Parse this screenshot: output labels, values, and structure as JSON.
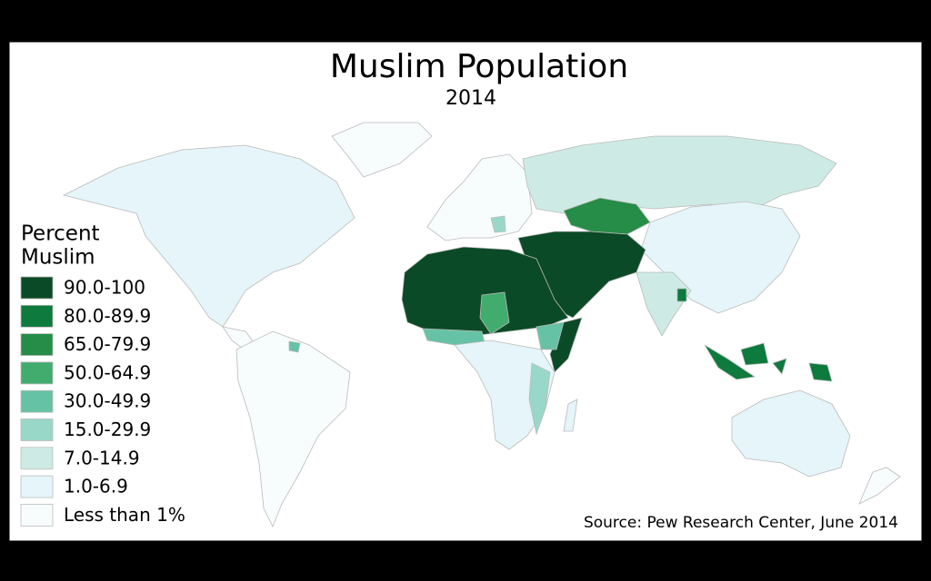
{
  "header": {
    "title": "Muslim Population",
    "subtitle": "2014"
  },
  "legend": {
    "title_lines": [
      "Percent",
      "Muslim"
    ],
    "items": [
      {
        "label": "90.0-100",
        "color": "#0b4a26"
      },
      {
        "label": "80.0-89.9",
        "color": "#0e7a3d"
      },
      {
        "label": "65.0-79.9",
        "color": "#258d47"
      },
      {
        "label": "50.0-64.9",
        "color": "#42ab6e"
      },
      {
        "label": "30.0-49.9",
        "color": "#66c2a4"
      },
      {
        "label": "15.0-29.9",
        "color": "#99d8c9"
      },
      {
        "label": "7.0-14.9",
        "color": "#cdebe4"
      },
      {
        "label": "1.0-6.9",
        "color": "#e5f5f9"
      },
      {
        "label": "Less than 1%",
        "color": "#f7fcfd"
      }
    ]
  },
  "source": "Source: Pew Research Center, June 2014"
}
